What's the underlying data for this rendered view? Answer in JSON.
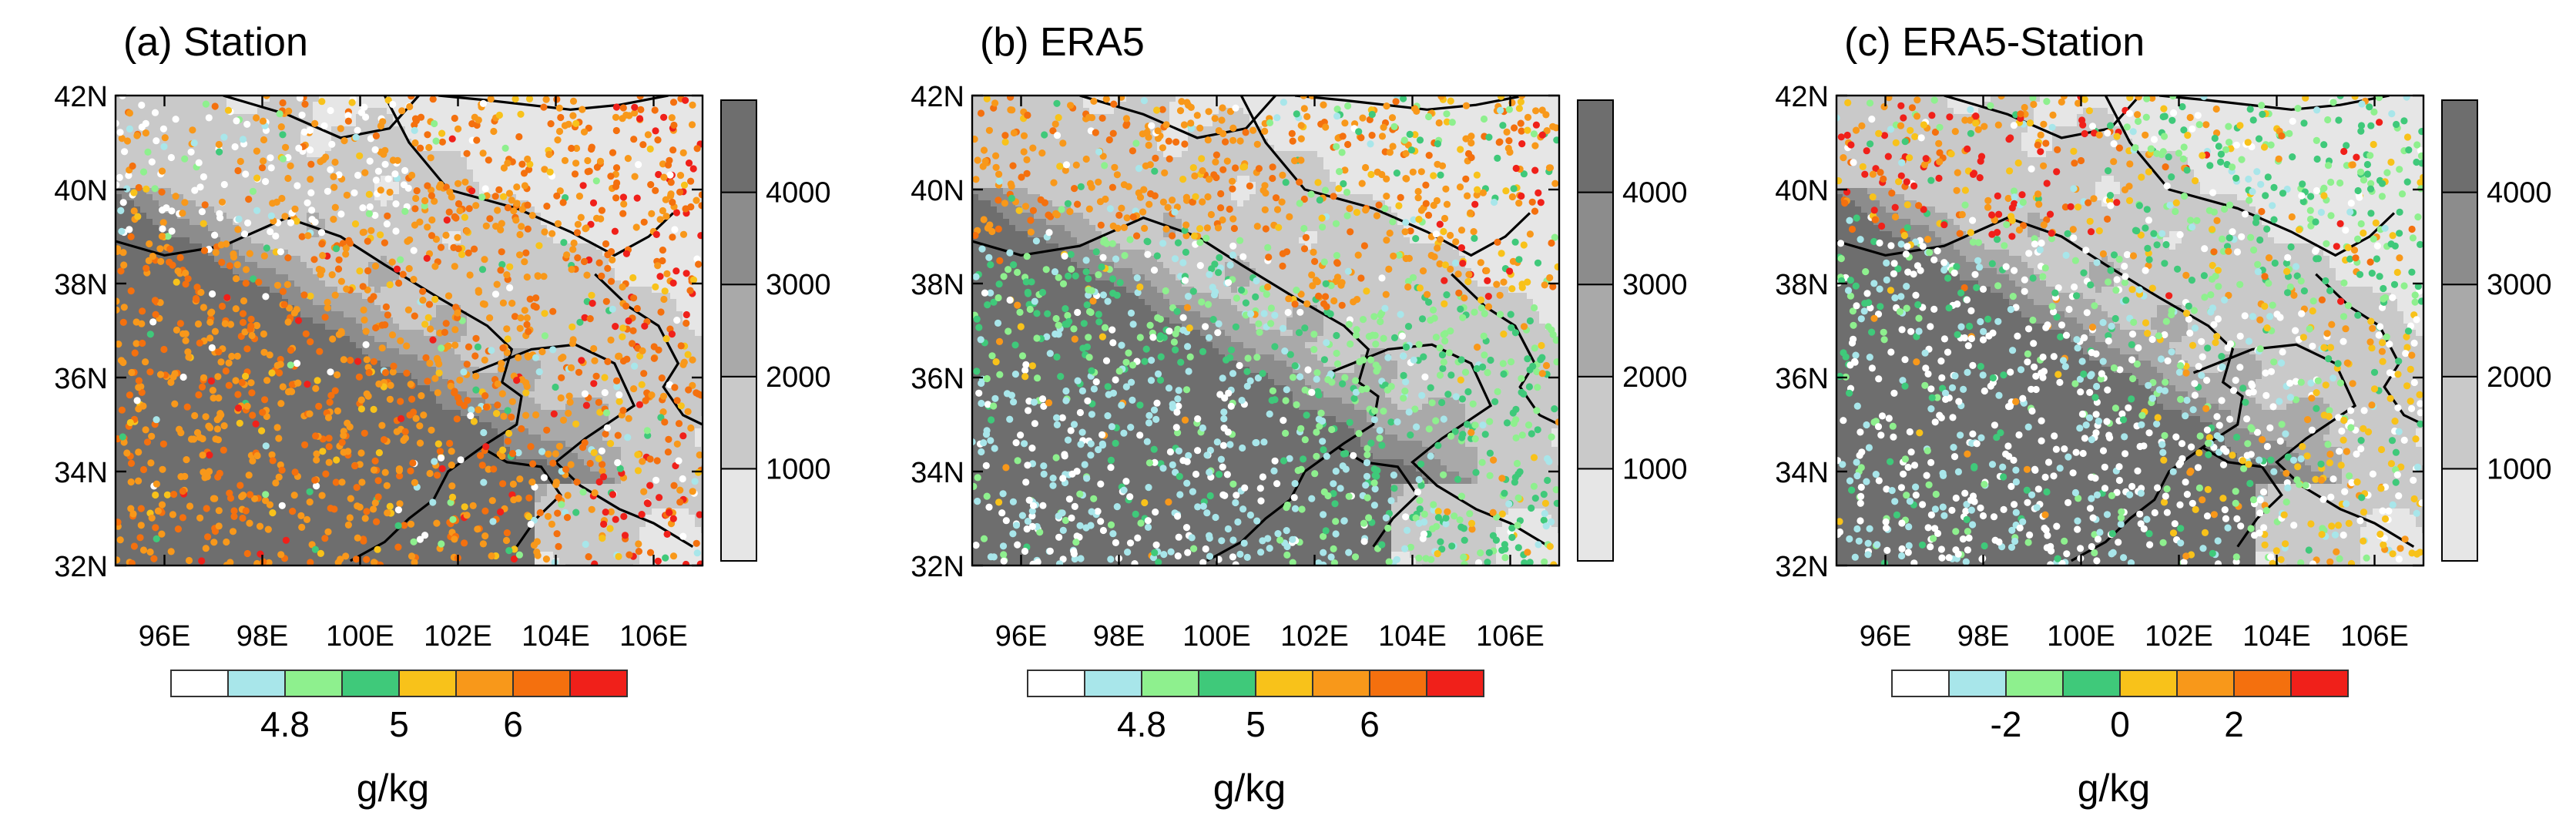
{
  "chart_data": [
    {
      "type": "scatter",
      "title": "(a) Station",
      "xticks": [
        "96E",
        "98E",
        "100E",
        "102E",
        "104E",
        "106E"
      ],
      "yticks": [
        "32N",
        "34N",
        "36N",
        "38N",
        "40N",
        "42N"
      ],
      "xlim": [
        95,
        107
      ],
      "ylim": [
        32,
        42
      ],
      "elevation_ticks": [
        "1000",
        "2000",
        "3000",
        "4000"
      ],
      "colorbar_labels": [
        "4.8",
        "5",
        "6"
      ],
      "units": "g/kg",
      "palette": [
        "#ffffff",
        "#a8e6ea",
        "#8ef08e",
        "#3fc97a",
        "#f8c21a",
        "#f8981a",
        "#f4700e",
        "#f0201a"
      ],
      "regions": [
        {
          "lon": [
            95,
            101
          ],
          "lat": [
            32,
            36
          ],
          "probs": [
            0.03,
            0.01,
            0.02,
            0.02,
            0.08,
            0.5,
            0.32,
            0.02
          ]
        },
        {
          "lon": [
            95,
            101
          ],
          "lat": [
            36,
            39
          ],
          "probs": [
            0.03,
            0.01,
            0.02,
            0.01,
            0.07,
            0.5,
            0.34,
            0.02
          ]
        },
        {
          "lon": [
            95,
            101
          ],
          "lat": [
            39,
            42
          ],
          "probs": [
            0.45,
            0.08,
            0.05,
            0.02,
            0.05,
            0.25,
            0.1,
            0.0
          ]
        },
        {
          "lon": [
            101,
            104.5
          ],
          "lat": [
            32,
            34.5
          ],
          "probs": [
            0.1,
            0.08,
            0.05,
            0.03,
            0.06,
            0.35,
            0.3,
            0.03
          ]
        },
        {
          "lon": [
            101,
            104.5
          ],
          "lat": [
            34.5,
            37.5
          ],
          "probs": [
            0.05,
            0.05,
            0.05,
            0.03,
            0.07,
            0.4,
            0.33,
            0.02
          ]
        },
        {
          "lon": [
            101,
            104.5
          ],
          "lat": [
            37.5,
            42
          ],
          "probs": [
            0.03,
            0.02,
            0.03,
            0.02,
            0.06,
            0.44,
            0.38,
            0.02
          ]
        },
        {
          "lon": [
            104.5,
            107
          ],
          "lat": [
            32,
            34.5
          ],
          "probs": [
            0.15,
            0.05,
            0.03,
            0.02,
            0.05,
            0.2,
            0.22,
            0.28
          ]
        },
        {
          "lon": [
            104.5,
            107
          ],
          "lat": [
            34.5,
            37.5
          ],
          "probs": [
            0.05,
            0.03,
            0.03,
            0.02,
            0.06,
            0.3,
            0.35,
            0.16
          ]
        },
        {
          "lon": [
            104.5,
            107
          ],
          "lat": [
            37.5,
            42
          ],
          "probs": [
            0.02,
            0.01,
            0.02,
            0.02,
            0.05,
            0.3,
            0.38,
            0.2
          ]
        }
      ]
    },
    {
      "type": "scatter",
      "title": "(b) ERA5",
      "xticks": [
        "96E",
        "98E",
        "100E",
        "102E",
        "104E",
        "106E"
      ],
      "yticks": [
        "32N",
        "34N",
        "36N",
        "38N",
        "40N",
        "42N"
      ],
      "xlim": [
        95,
        107
      ],
      "ylim": [
        32,
        42
      ],
      "elevation_ticks": [
        "1000",
        "2000",
        "3000",
        "4000"
      ],
      "colorbar_labels": [
        "4.8",
        "5",
        "6"
      ],
      "units": "g/kg",
      "palette": [
        "#ffffff",
        "#a8e6ea",
        "#8ef08e",
        "#3fc97a",
        "#f8c21a",
        "#f8981a",
        "#f4700e",
        "#f0201a"
      ],
      "regions": [
        {
          "lon": [
            95,
            101
          ],
          "lat": [
            32,
            36
          ],
          "probs": [
            0.35,
            0.45,
            0.1,
            0.08,
            0.01,
            0.01,
            0.0,
            0.0
          ]
        },
        {
          "lon": [
            95,
            101
          ],
          "lat": [
            36,
            39
          ],
          "probs": [
            0.1,
            0.25,
            0.3,
            0.3,
            0.02,
            0.02,
            0.01,
            0.0
          ]
        },
        {
          "lon": [
            95,
            101
          ],
          "lat": [
            39,
            42
          ],
          "probs": [
            0.02,
            0.03,
            0.02,
            0.03,
            0.1,
            0.55,
            0.25,
            0.0
          ]
        },
        {
          "lon": [
            101,
            104.5
          ],
          "lat": [
            32,
            34.5
          ],
          "probs": [
            0.1,
            0.35,
            0.3,
            0.25,
            0.0,
            0.0,
            0.0,
            0.0
          ]
        },
        {
          "lon": [
            101,
            104.5
          ],
          "lat": [
            34.5,
            37.5
          ],
          "probs": [
            0.05,
            0.25,
            0.45,
            0.25,
            0.0,
            0.0,
            0.0,
            0.0
          ]
        },
        {
          "lon": [
            101,
            104.5
          ],
          "lat": [
            37.5,
            42
          ],
          "probs": [
            0.02,
            0.05,
            0.1,
            0.08,
            0.1,
            0.45,
            0.2,
            0.0
          ]
        },
        {
          "lon": [
            104.5,
            107
          ],
          "lat": [
            32,
            34.5
          ],
          "probs": [
            0.03,
            0.08,
            0.25,
            0.45,
            0.15,
            0.04,
            0.0,
            0.0
          ]
        },
        {
          "lon": [
            104.5,
            107
          ],
          "lat": [
            34.5,
            37.5
          ],
          "probs": [
            0.02,
            0.05,
            0.4,
            0.45,
            0.05,
            0.03,
            0.0,
            0.0
          ]
        },
        {
          "lon": [
            104.5,
            107
          ],
          "lat": [
            37.5,
            42
          ],
          "probs": [
            0.0,
            0.02,
            0.05,
            0.1,
            0.2,
            0.35,
            0.15,
            0.13
          ]
        }
      ]
    },
    {
      "type": "scatter",
      "title": "(c) ERA5-Station",
      "xticks": [
        "96E",
        "98E",
        "100E",
        "102E",
        "104E",
        "106E"
      ],
      "yticks": [
        "32N",
        "34N",
        "36N",
        "38N",
        "40N",
        "42N"
      ],
      "xlim": [
        95,
        107
      ],
      "ylim": [
        32,
        42
      ],
      "elevation_ticks": [
        "1000",
        "2000",
        "3000",
        "4000"
      ],
      "colorbar_labels": [
        "-2",
        "0",
        "2"
      ],
      "units": "g/kg",
      "palette": [
        "#ffffff",
        "#a8e6ea",
        "#8ef08e",
        "#3fc97a",
        "#f8c21a",
        "#f8981a",
        "#f4700e",
        "#f0201a"
      ],
      "regions": [
        {
          "lon": [
            95,
            101
          ],
          "lat": [
            32,
            36
          ],
          "probs": [
            0.55,
            0.25,
            0.1,
            0.08,
            0.01,
            0.01,
            0.0,
            0.0
          ]
        },
        {
          "lon": [
            95,
            101
          ],
          "lat": [
            36,
            39
          ],
          "probs": [
            0.4,
            0.2,
            0.15,
            0.2,
            0.02,
            0.02,
            0.01,
            0.0
          ]
        },
        {
          "lon": [
            95,
            101
          ],
          "lat": [
            39,
            42
          ],
          "probs": [
            0.05,
            0.05,
            0.05,
            0.05,
            0.15,
            0.25,
            0.15,
            0.25
          ]
        },
        {
          "lon": [
            101,
            104.5
          ],
          "lat": [
            32,
            34.5
          ],
          "probs": [
            0.35,
            0.2,
            0.15,
            0.1,
            0.15,
            0.05,
            0.0,
            0.0
          ]
        },
        {
          "lon": [
            101,
            104.5
          ],
          "lat": [
            34.5,
            37.5
          ],
          "probs": [
            0.45,
            0.2,
            0.15,
            0.1,
            0.07,
            0.03,
            0.0,
            0.0
          ]
        },
        {
          "lon": [
            101,
            104.5
          ],
          "lat": [
            37.5,
            42
          ],
          "probs": [
            0.1,
            0.1,
            0.25,
            0.3,
            0.1,
            0.1,
            0.03,
            0.02
          ]
        },
        {
          "lon": [
            104.5,
            107
          ],
          "lat": [
            32,
            34.5
          ],
          "probs": [
            0.3,
            0.05,
            0.05,
            0.05,
            0.4,
            0.15,
            0.0,
            0.0
          ]
        },
        {
          "lon": [
            104.5,
            107
          ],
          "lat": [
            34.5,
            37.5
          ],
          "probs": [
            0.35,
            0.05,
            0.1,
            0.1,
            0.3,
            0.1,
            0.0,
            0.0
          ]
        },
        {
          "lon": [
            104.5,
            107
          ],
          "lat": [
            37.5,
            42
          ],
          "probs": [
            0.1,
            0.05,
            0.3,
            0.3,
            0.1,
            0.05,
            0.05,
            0.05
          ]
        }
      ]
    }
  ]
}
